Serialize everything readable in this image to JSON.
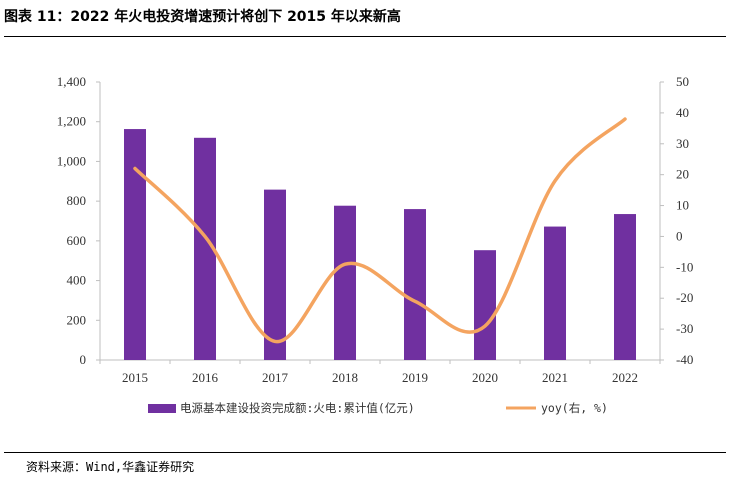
{
  "figure": {
    "title": "图表 11：2022 年火电投资增速预计将创下 2015 年以来新高",
    "source": "资料来源：Wind,华鑫证券研究"
  },
  "chart_data": {
    "type": "bar",
    "categories": [
      "2015",
      "2016",
      "2017",
      "2018",
      "2019",
      "2020",
      "2021",
      "2022"
    ],
    "series": [
      {
        "name": "电源基本建设投资完成额:火电:累计值(亿元)",
        "type": "bar",
        "axis": "left",
        "color": "#7030A0",
        "values": [
          1163,
          1119,
          858,
          777,
          760,
          553,
          672,
          735
        ]
      },
      {
        "name": "yoy(右, %)",
        "type": "line",
        "axis": "right",
        "color": "#F4A460",
        "values": [
          22,
          0,
          -34,
          -9,
          -21,
          -29,
          18,
          38
        ]
      }
    ],
    "ylim_left": [
      0,
      1400
    ],
    "ylim_right": [
      -40,
      50
    ],
    "yticks_left": [
      "0",
      "200",
      "400",
      "600",
      "800",
      "1,000",
      "1,200",
      "1,400"
    ],
    "yticks_right": [
      "-40",
      "-30",
      "-20",
      "-10",
      "0",
      "10",
      "20",
      "30",
      "40",
      "50"
    ],
    "grid": false,
    "legend_position": "bottom"
  }
}
